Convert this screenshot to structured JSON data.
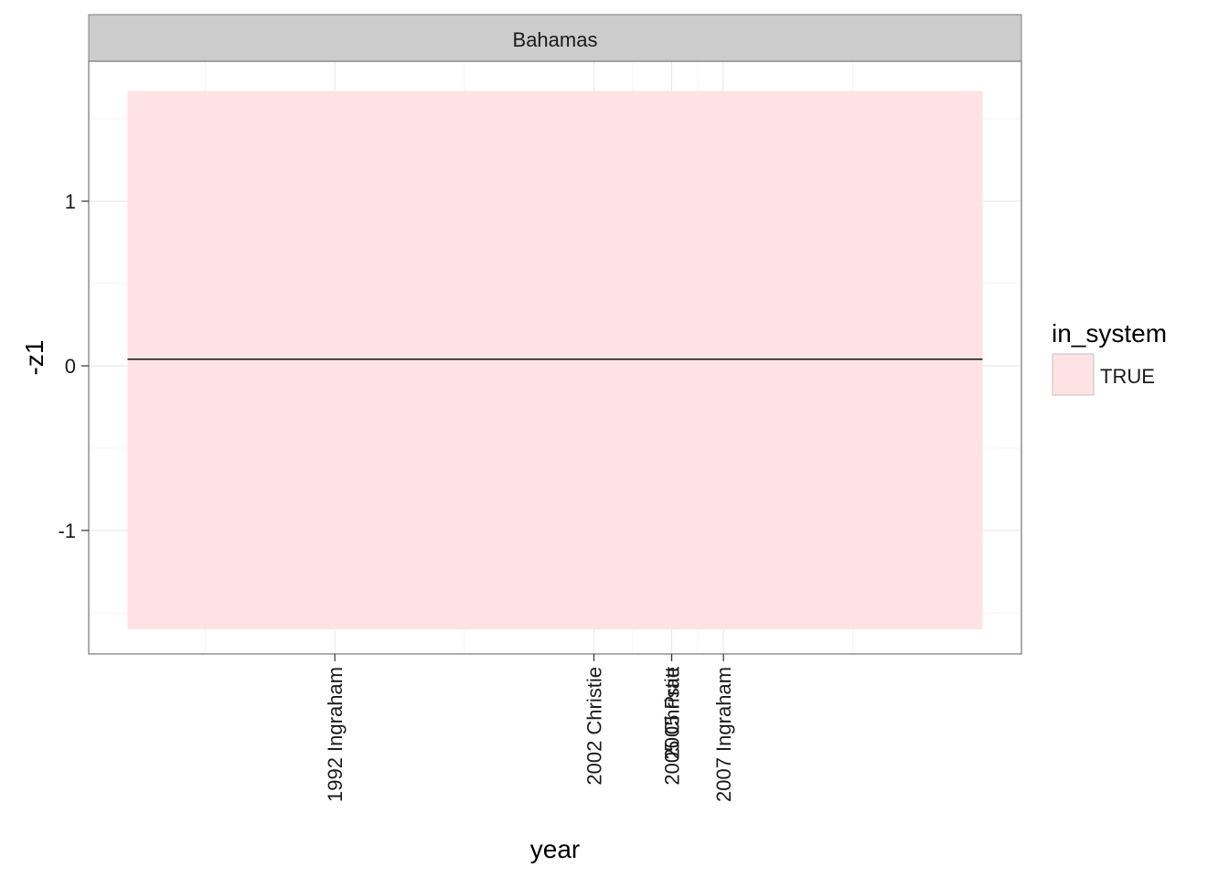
{
  "colors": {
    "ribbon": "#ffe2e3",
    "line": "#111111",
    "grid_major": "#ebebeb",
    "grid_minor": "#f4f4f4",
    "panel_border": "#7f7f7f",
    "strip_fill": "#cccccc"
  },
  "chart_data": {
    "type": "area",
    "facet": "Bahamas",
    "xlabel": "year",
    "ylabel": "-z1",
    "xlim": [
      1982.5,
      2018.5
    ],
    "ylim": [
      -1.75,
      1.85
    ],
    "y_ticks": [
      -1,
      0,
      1
    ],
    "x_breaks": [
      {
        "value": 1992,
        "label": "1992 Ingraham"
      },
      {
        "value": 2002,
        "label": "2002 Christie"
      },
      {
        "value": 2005,
        "label": "2005 Pratt"
      },
      {
        "value": 2005,
        "label": "2005 Christie"
      },
      {
        "value": 2007,
        "label": "2007 Ingraham"
      }
    ],
    "minor_gridlines_x": [
      1987,
      1997,
      2003.5,
      2006,
      2012
    ],
    "series": [
      {
        "x": [
          1984,
          2017
        ],
        "y": [
          0.04,
          0.04
        ],
        "ymin": [
          -1.6,
          -1.6
        ],
        "ymax": [
          1.67,
          1.67
        ]
      }
    ],
    "grid": true,
    "legend": {
      "title": "in_system",
      "position": "right",
      "entries": [
        {
          "label": "TRUE",
          "color": "#ffe2e3"
        }
      ]
    }
  }
}
